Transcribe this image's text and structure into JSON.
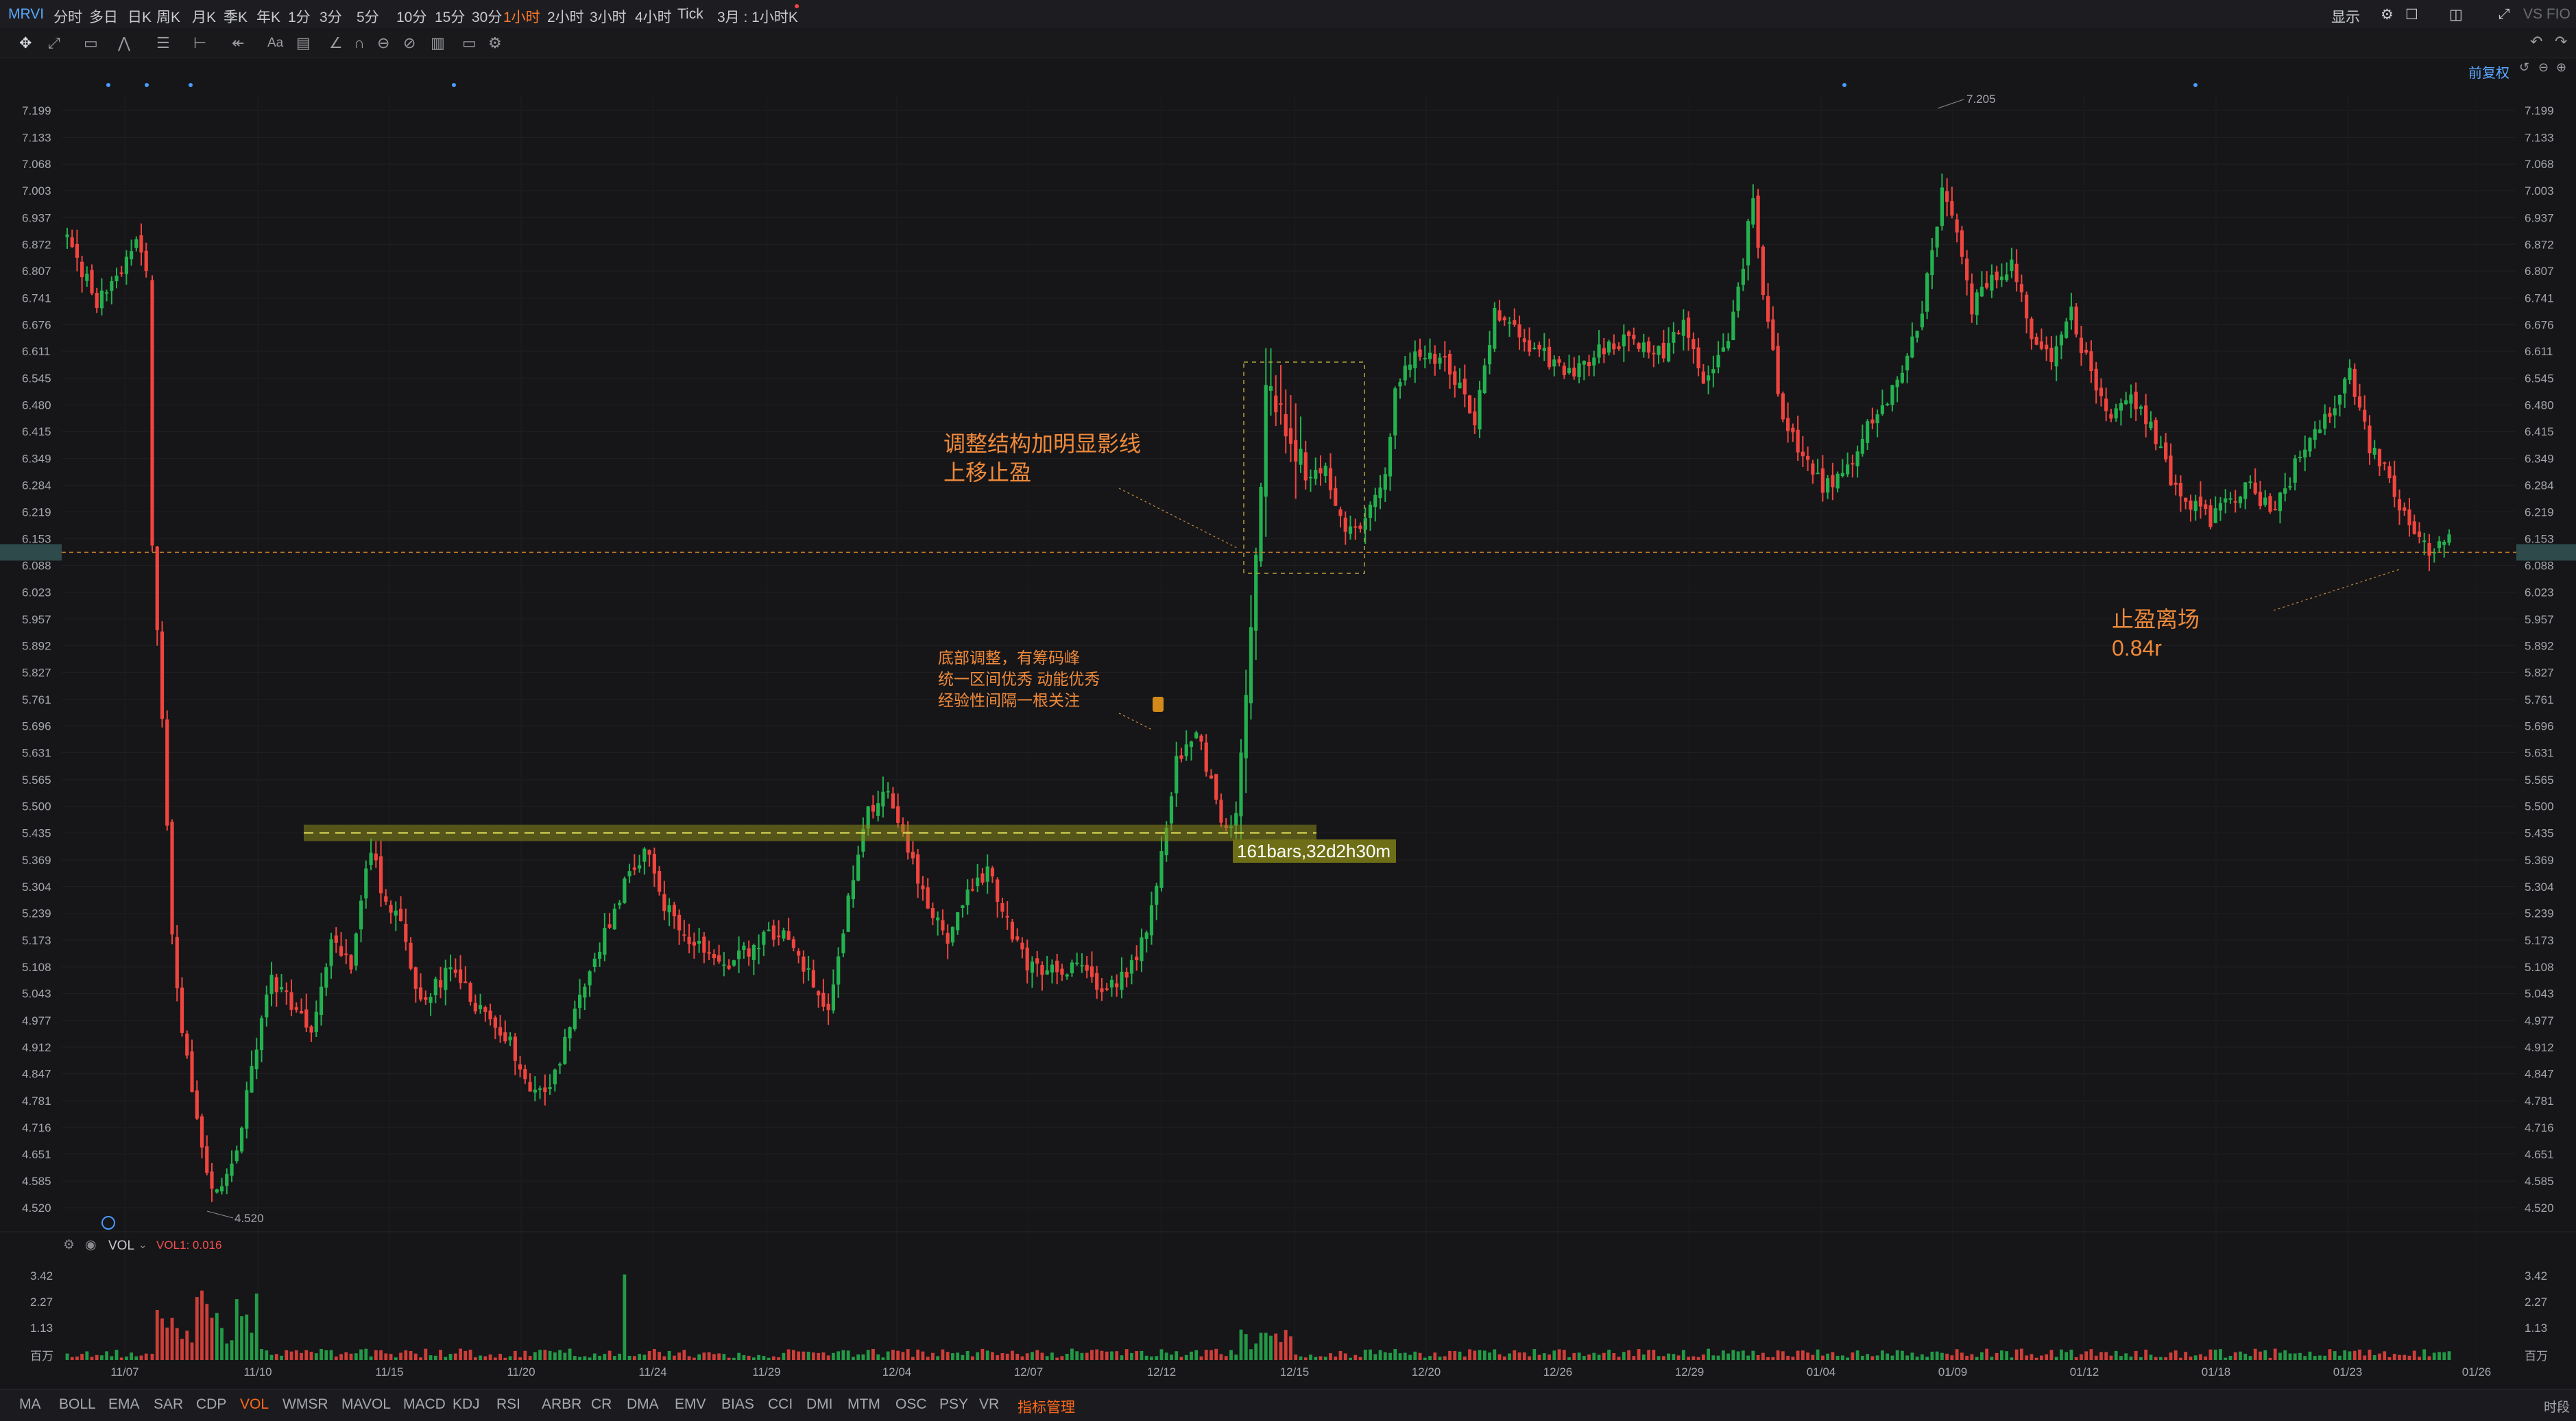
{
  "topbar": {
    "ticker": "MRVI",
    "periods": [
      "分时",
      "多日",
      "日K",
      "周K",
      "月K",
      "季K",
      "年K",
      "1分",
      "3分",
      "5分",
      "10分",
      "15分",
      "30分",
      "1小时",
      "2小时",
      "3小时",
      "4小时",
      "Tick",
      "3月 : 1小时K"
    ],
    "active_period": "1小时",
    "display_label": "显示",
    "right_text": "VS FIO"
  },
  "toolbar": {
    "fuquan_label": "前复权"
  },
  "chart_data": {
    "type": "candlestick",
    "title": "",
    "y_ticks": [
      7.199,
      7.133,
      7.068,
      7.003,
      6.937,
      6.872,
      6.807,
      6.741,
      6.676,
      6.611,
      6.545,
      6.48,
      6.415,
      6.349,
      6.284,
      6.219,
      6.153,
      6.088,
      6.023,
      5.957,
      5.892,
      5.827,
      5.761,
      5.696,
      5.631,
      5.565,
      5.5,
      5.435,
      5.369,
      5.304,
      5.239,
      5.173,
      5.108,
      5.043,
      4.977,
      4.912,
      4.847,
      4.781,
      4.716,
      4.651,
      4.585,
      4.52
    ],
    "y_range": [
      4.49,
      7.235
    ],
    "x_labels": [
      "11/07",
      "11/10",
      "11/15",
      "11/20",
      "11/24",
      "11/29",
      "12/04",
      "12/07",
      "12/12",
      "12/15",
      "12/20",
      "12/26",
      "12/29",
      "01/04",
      "01/09",
      "01/12",
      "01/18",
      "01/23",
      "01/26"
    ],
    "current_price": 6.12,
    "high_label": "7.205",
    "low_label": "4.520",
    "range_label": "161bars,32d2h30m",
    "range_band_price": [
      5.455,
      5.415
    ],
    "up_color": "#24b14f",
    "down_color": "#f0453e",
    "annotations": {
      "stop_move": [
        "调整结构加明显影线",
        "上移止盈"
      ],
      "bottom_adjust": [
        "底部调整，有筹码峰",
        "统一区间优秀 动能优秀",
        "经验性间隔一根关注"
      ],
      "exit": [
        "止盈离场",
        "0.84r"
      ]
    },
    "volume": {
      "label": "VOL",
      "value_text": "VOL1: 0.016",
      "y_ticks": [
        "3.42",
        "2.27",
        "1.13",
        "百万"
      ],
      "y_max": 3.6
    }
  },
  "bottombar": {
    "indicators": [
      "MA",
      "BOLL",
      "EMA",
      "SAR",
      "CDP",
      "VOL",
      "WMSR",
      "MAVOL",
      "MACD",
      "KDJ",
      "RSI",
      "ARBR",
      "CR",
      "DMA",
      "EMV",
      "BIAS",
      "CCI",
      "DMI",
      "MTM",
      "OSC",
      "PSY",
      "VR"
    ],
    "active_indicator": "VOL",
    "manage_label": "指标管理",
    "right_label": "时段"
  }
}
